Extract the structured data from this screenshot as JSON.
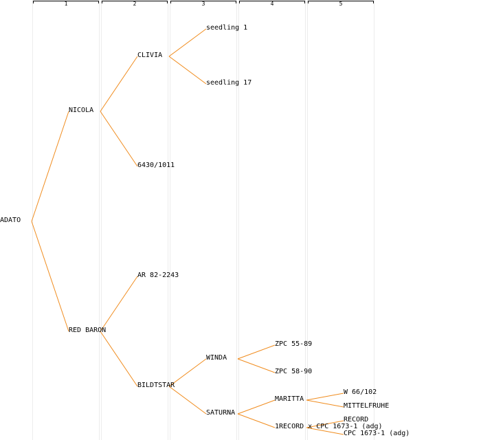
{
  "line_color": "#f08c1e",
  "generations": [
    "1",
    "2",
    "3",
    "4",
    "5"
  ],
  "tree": {
    "label": "ADATO",
    "children": [
      {
        "label": "NICOLA",
        "children": [
          {
            "label": "CLIVIA",
            "children": [
              {
                "label": "seedling 1"
              },
              {
                "label": "seedling 17"
              }
            ]
          },
          {
            "label": "6430/1011"
          }
        ]
      },
      {
        "label": "RED BARON",
        "children": [
          {
            "label": "AR 82-2243"
          },
          {
            "label": "BILDTSTAR",
            "children": [
              {
                "label": "WINDA",
                "children": [
                  {
                    "label": "ZPC 55-89"
                  },
                  {
                    "label": "ZPC 58-90"
                  }
                ]
              },
              {
                "label": "SATURNA",
                "children": [
                  {
                    "label": "MARITTA",
                    "children": [
                      {
                        "label": "W 66/102"
                      },
                      {
                        "label": "MITTELFRUHE"
                      }
                    ]
                  },
                  {
                    "label": "1RECORD x CPC 1673-1 (adg)",
                    "children": [
                      {
                        "label": "RECORD"
                      },
                      {
                        "label": "CPC 1673-1 (adg)"
                      }
                    ]
                  }
                ]
              }
            ]
          }
        ]
      }
    ]
  }
}
